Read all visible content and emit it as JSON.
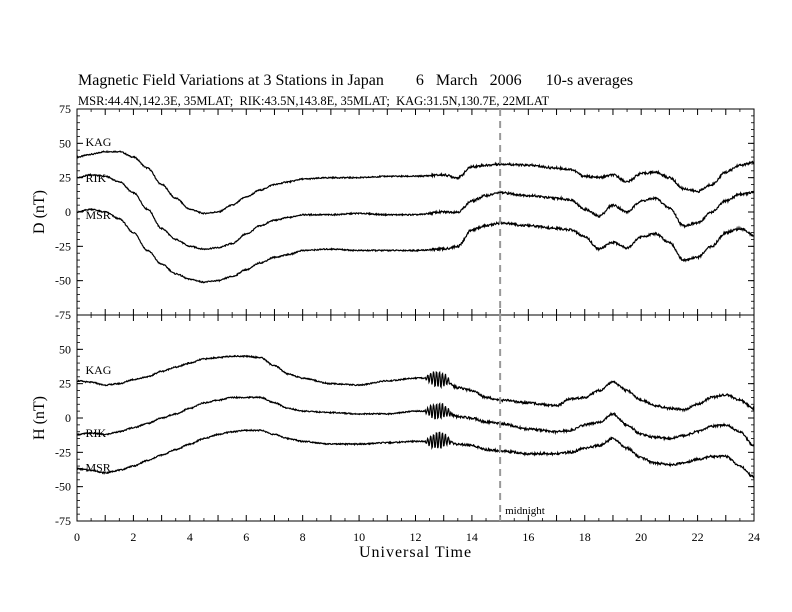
{
  "title": "Magnetic Field Variations at 3 Stations in Japan        6   March   2006      10-s averages",
  "subtitle": "MSR:44.4N,142.3E, 35MLAT;  RIK:43.5N,143.8E, 35MLAT;  KAG:31.5N,130.7E, 22MLAT",
  "chart_data": [
    {
      "type": "line",
      "ylabel": "D (nT)",
      "xlabel": "",
      "xlim": [
        0,
        24
      ],
      "ylim": [
        -75,
        75
      ],
      "xticks": [
        0,
        2,
        4,
        6,
        8,
        10,
        12,
        14,
        16,
        18,
        20,
        22,
        24
      ],
      "yticks": [
        75,
        50,
        25,
        0,
        -25,
        -50,
        -75
      ],
      "grid": false,
      "annotations": [
        {
          "text": "midnight",
          "x": 15
        }
      ],
      "series": [
        {
          "name": "KAG",
          "x": [
            0,
            0.5,
            1,
            1.5,
            2,
            2.5,
            3,
            3.5,
            4,
            4.5,
            5,
            5.5,
            6,
            6.5,
            7,
            7.5,
            8,
            9,
            10,
            11,
            12,
            13,
            13.5,
            14,
            14.5,
            15,
            16,
            17,
            17.5,
            18,
            18.5,
            19,
            19.5,
            20,
            20.5,
            21,
            21.5,
            22,
            22.5,
            23,
            23.5,
            24
          ],
          "values": [
            40,
            42,
            44,
            44,
            40,
            32,
            20,
            10,
            2,
            -1,
            0,
            5,
            11,
            16,
            20,
            22,
            24,
            25,
            25,
            26,
            26,
            27,
            25,
            33,
            34,
            35,
            34,
            32,
            31,
            26,
            25,
            27,
            22,
            28,
            29,
            25,
            17,
            15,
            20,
            29,
            34,
            36
          ]
        },
        {
          "name": "RIK",
          "x": [
            0,
            0.5,
            1,
            1.5,
            2,
            2.5,
            3,
            3.5,
            4,
            4.5,
            5,
            5.5,
            6,
            6.5,
            7,
            7.5,
            8,
            9,
            10,
            11,
            12,
            13,
            13.5,
            14,
            14.5,
            15,
            16,
            17,
            17.5,
            18,
            18.5,
            19,
            19.5,
            20,
            20.5,
            21,
            21.5,
            22,
            22.5,
            23,
            23.5,
            24
          ],
          "values": [
            25,
            27,
            26,
            22,
            14,
            2,
            -12,
            -20,
            -25,
            -27,
            -26,
            -23,
            -16,
            -10,
            -6,
            -4,
            -2,
            -2,
            -1,
            -2,
            -2,
            0,
            0,
            8,
            12,
            14,
            12,
            10,
            9,
            2,
            -3,
            5,
            0,
            8,
            10,
            3,
            -10,
            -8,
            0,
            8,
            13,
            14
          ]
        },
        {
          "name": "MSR",
          "x": [
            0,
            0.5,
            1,
            1.5,
            2,
            2.5,
            3,
            3.5,
            4,
            4.5,
            5,
            5.5,
            6,
            6.5,
            7,
            7.5,
            8,
            9,
            10,
            11,
            12,
            13,
            13.5,
            14,
            14.5,
            15,
            16,
            17,
            17.5,
            18,
            18.5,
            19,
            19.5,
            20,
            20.5,
            21,
            21.5,
            22,
            22.5,
            23,
            23.5,
            24
          ],
          "values": [
            0,
            2,
            0,
            -5,
            -15,
            -28,
            -38,
            -45,
            -49,
            -51,
            -50,
            -47,
            -42,
            -37,
            -33,
            -31,
            -28,
            -27,
            -28,
            -28,
            -28,
            -27,
            -25,
            -13,
            -10,
            -8,
            -10,
            -12,
            -13,
            -18,
            -27,
            -22,
            -26,
            -18,
            -16,
            -22,
            -35,
            -33,
            -25,
            -15,
            -12,
            -17
          ]
        }
      ]
    },
    {
      "type": "line",
      "ylabel": "H (nT)",
      "xlabel": "Universal Time",
      "xlim": [
        0,
        24
      ],
      "ylim": [
        -75,
        75
      ],
      "xticks": [
        0,
        2,
        4,
        6,
        8,
        10,
        12,
        14,
        16,
        18,
        20,
        22,
        24
      ],
      "yticks": [
        75,
        50,
        25,
        0,
        -25,
        -50,
        -75
      ],
      "grid": false,
      "series": [
        {
          "name": "KAG",
          "x": [
            0,
            0.5,
            1,
            1.5,
            2,
            2.5,
            3,
            3.5,
            4,
            4.5,
            5,
            5.5,
            6,
            6.5,
            7,
            7.5,
            8,
            9,
            10,
            11,
            12,
            12.5,
            13,
            13.5,
            14,
            14.5,
            15,
            16,
            17,
            17.5,
            18,
            18.5,
            19,
            19.5,
            20,
            20.5,
            21,
            21.5,
            22,
            22.5,
            23,
            23.5,
            24
          ],
          "values": [
            27,
            26,
            24,
            25,
            28,
            30,
            34,
            37,
            40,
            43,
            44,
            45,
            45,
            44,
            38,
            32,
            29,
            25,
            24,
            27,
            29,
            29,
            28,
            22,
            20,
            15,
            13,
            11,
            9,
            14,
            15,
            20,
            26,
            20,
            13,
            9,
            7,
            6,
            10,
            15,
            17,
            13,
            7
          ]
        },
        {
          "name": "RIK",
          "x": [
            0,
            0.5,
            1,
            1.5,
            2,
            2.5,
            3,
            3.5,
            4,
            4.5,
            5,
            5.5,
            6,
            6.5,
            7,
            7.5,
            8,
            9,
            10,
            11,
            12,
            12.5,
            13,
            13.5,
            14,
            14.5,
            15,
            16,
            17,
            17.5,
            18,
            18.5,
            19,
            19.5,
            20,
            20.5,
            21,
            21.5,
            22,
            22.5,
            23,
            23.5,
            24
          ],
          "values": [
            -12,
            -11,
            -12,
            -10,
            -7,
            -4,
            0,
            3,
            7,
            11,
            13,
            15,
            15,
            15,
            11,
            7,
            5,
            4,
            3,
            3,
            5,
            5,
            5,
            1,
            0,
            -3,
            -4,
            -8,
            -10,
            -9,
            -5,
            -3,
            3,
            -5,
            -12,
            -14,
            -15,
            -13,
            -10,
            -6,
            -5,
            -10,
            -20
          ]
        },
        {
          "name": "MSR",
          "x": [
            0,
            0.5,
            1,
            1.5,
            2,
            2.5,
            3,
            3.5,
            4,
            4.5,
            5,
            5.5,
            6,
            6.5,
            7,
            7.5,
            8,
            9,
            10,
            11,
            12,
            12.5,
            13,
            13.5,
            14,
            14.5,
            15,
            16,
            17,
            17.5,
            18,
            18.5,
            19,
            19.5,
            20,
            20.5,
            21,
            21.5,
            22,
            22.5,
            23,
            23.5,
            24
          ],
          "values": [
            -37,
            -38,
            -40,
            -38,
            -35,
            -31,
            -27,
            -23,
            -19,
            -15,
            -12,
            -10,
            -9,
            -9,
            -12,
            -15,
            -17,
            -19,
            -19,
            -18,
            -17,
            -17,
            -16,
            -19,
            -20,
            -23,
            -24,
            -26,
            -26,
            -25,
            -22,
            -20,
            -15,
            -22,
            -29,
            -33,
            -34,
            -33,
            -30,
            -28,
            -28,
            -35,
            -43
          ]
        }
      ]
    }
  ]
}
